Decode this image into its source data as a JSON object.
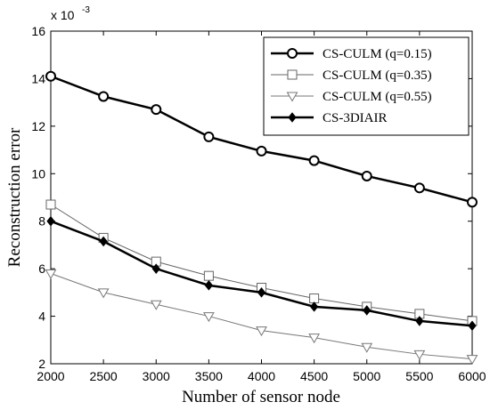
{
  "chart_data": {
    "type": "line",
    "xlabel": "Number of sensor node",
    "ylabel": "Reconstruction error",
    "y_multiplier": "x 10",
    "y_multiplier_exp": "-3",
    "x": [
      2000,
      2500,
      3000,
      3500,
      4000,
      4500,
      5000,
      5500,
      6000
    ],
    "xlim": [
      2000,
      6000
    ],
    "ylim": [
      2,
      16
    ],
    "x_ticks": [
      "2000",
      "2500",
      "3000",
      "3500",
      "4000",
      "4500",
      "5000",
      "5500",
      "6000"
    ],
    "y_ticks": [
      "2",
      "4",
      "6",
      "8",
      "10",
      "12",
      "14",
      "16"
    ],
    "grid": false,
    "legend_position": "top-right",
    "series": [
      {
        "name": "CS-CULM (q=0.15)",
        "marker": "circle",
        "line_style": "thick",
        "color": "#000000",
        "values": [
          14.1,
          13.25,
          12.7,
          11.55,
          10.95,
          10.55,
          9.9,
          9.4,
          8.8
        ]
      },
      {
        "name": "CS-CULM (q=0.35)",
        "marker": "square",
        "line_style": "thin",
        "color": "#666666",
        "values": [
          8.7,
          7.3,
          6.3,
          5.7,
          5.2,
          4.75,
          4.4,
          4.1,
          3.8
        ]
      },
      {
        "name": "CS-CULM (q=0.55)",
        "marker": "triangle-down",
        "line_style": "thin",
        "color": "#777777",
        "values": [
          5.8,
          5.0,
          4.5,
          4.0,
          3.4,
          3.1,
          2.7,
          2.4,
          2.2
        ]
      },
      {
        "name": "CS-3DIAIR",
        "marker": "diamond",
        "line_style": "thick",
        "color": "#000000",
        "values": [
          8.0,
          7.15,
          6.0,
          5.3,
          5.0,
          4.4,
          4.25,
          3.8,
          3.6
        ]
      }
    ]
  }
}
